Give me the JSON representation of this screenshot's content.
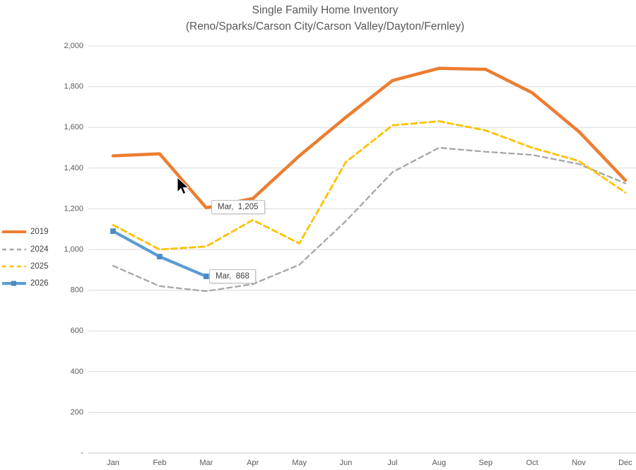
{
  "chart_data": {
    "type": "line",
    "title": "Single Family Home Inventory",
    "subtitle": "(Reno/Sparks/Carson City/Carson Valley/Dayton/Fernley)",
    "categories": [
      "Jan",
      "Feb",
      "Mar",
      "Apr",
      "May",
      "Jun",
      "Jul",
      "Aug",
      "Sep",
      "Oct",
      "Nov",
      "Dec"
    ],
    "xlabel": "",
    "ylabel": "",
    "ylim": [
      0,
      2000
    ],
    "y_tick_step": 200,
    "y_tick_labels": [
      "2,000",
      "1,800",
      "1,600",
      "1,400",
      "1,200",
      "1,000",
      "800",
      "600",
      "400",
      "200",
      "-"
    ],
    "grid": true,
    "legend_position": "left",
    "series": [
      {
        "name": "2019",
        "color": "#ED7D31",
        "style": "solid",
        "values": [
          1460,
          1470,
          1205,
          1250,
          1460,
          1650,
          1830,
          1890,
          1885,
          1770,
          1580,
          1340
        ]
      },
      {
        "name": "2024",
        "color": "#A6A6A6",
        "style": "dashed",
        "values": [
          920,
          820,
          795,
          830,
          925,
          1140,
          1380,
          1500,
          1480,
          1465,
          1420,
          1325
        ]
      },
      {
        "name": "2025",
        "color": "#FFC000",
        "style": "dashed",
        "values": [
          1120,
          1000,
          1015,
          1145,
          1030,
          1430,
          1610,
          1630,
          1585,
          1500,
          1435,
          1280
        ]
      },
      {
        "name": "2026",
        "color": "#5B9BD5",
        "marker_color": "#4A89C4",
        "style": "solid-markers",
        "values": [
          1090,
          965,
          868
        ]
      }
    ],
    "data_labels": [
      {
        "series_index": 0,
        "point_index": 2,
        "label": "Mar,  1,205"
      },
      {
        "series_index": 3,
        "point_index": 2,
        "label": "Mar,  868"
      }
    ]
  }
}
